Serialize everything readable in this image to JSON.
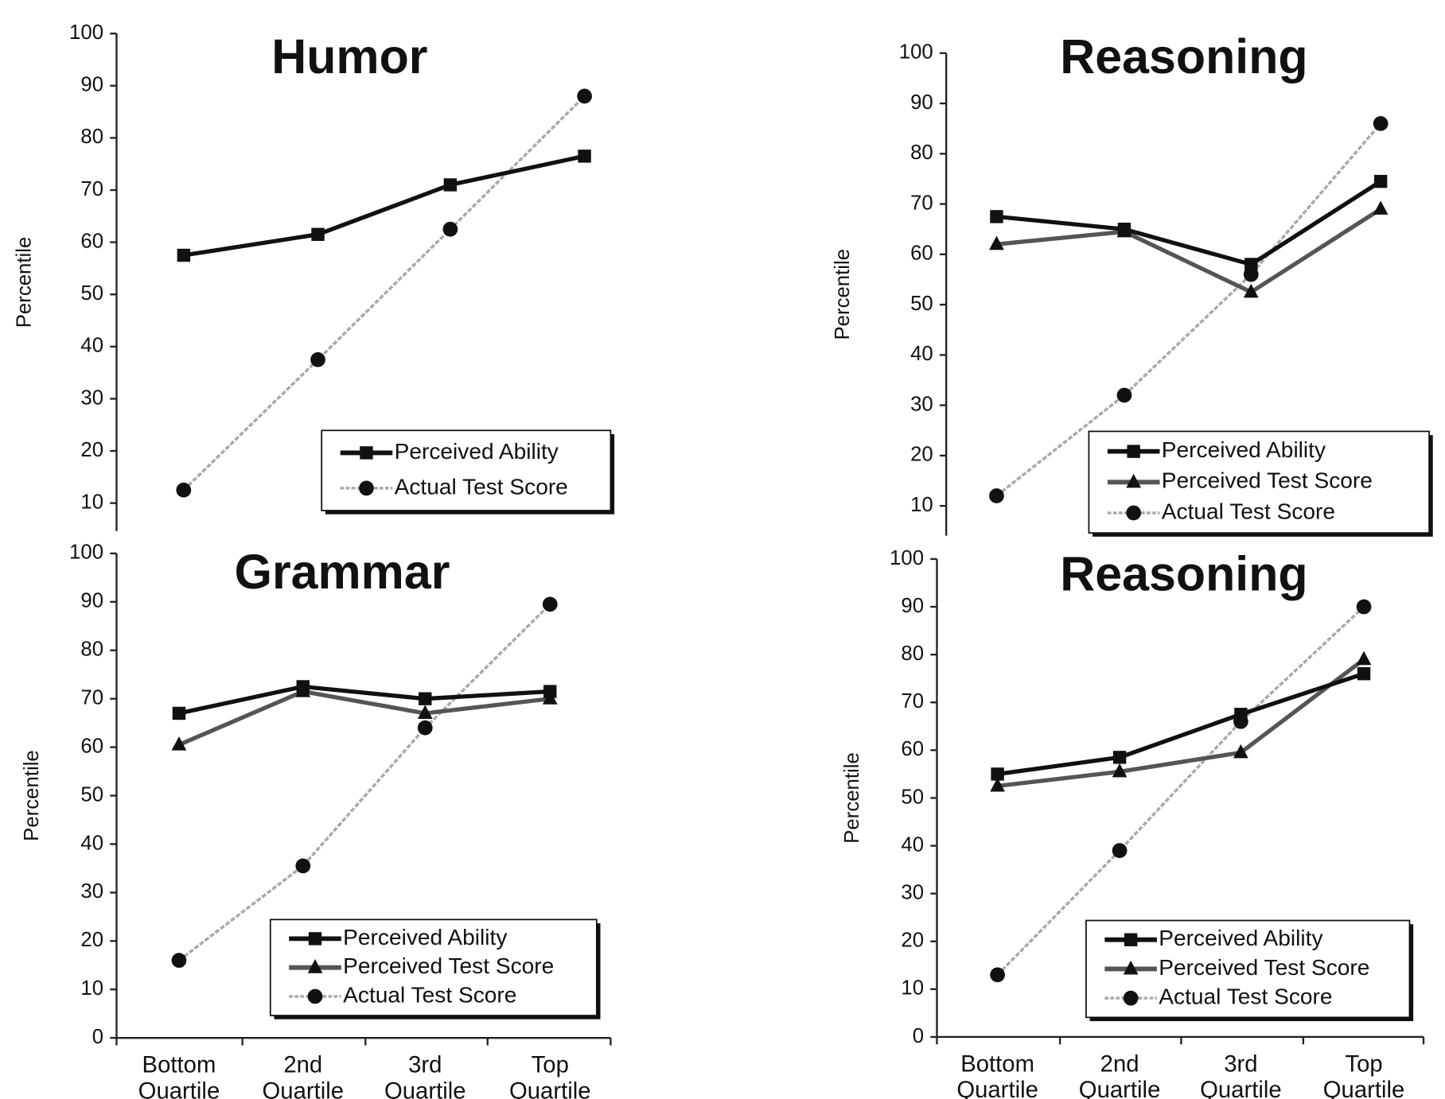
{
  "chart_data": [
    {
      "type": "line",
      "title": "Humor",
      "ylabel": "Percentile",
      "categories": [
        null,
        null,
        null,
        null
      ],
      "ylim": [
        5,
        100
      ],
      "yticks": [
        10,
        20,
        30,
        40,
        50,
        60,
        70,
        80,
        90,
        100
      ],
      "series": [
        {
          "name": "Perceived Ability",
          "color": "#111111",
          "marker": "square",
          "values": [
            57.5,
            61.5,
            71,
            76.5
          ]
        },
        {
          "name": "Actual Test Score",
          "color": "#aaaaaa",
          "marker": "circle",
          "values": [
            12.5,
            37.5,
            62.5,
            88
          ]
        }
      ]
    },
    {
      "type": "line",
      "title": "Reasoning",
      "ylabel": "Percentile",
      "categories": [
        null,
        null,
        null,
        null
      ],
      "ylim": [
        5,
        100
      ],
      "yticks": [
        10,
        20,
        30,
        40,
        50,
        60,
        70,
        80,
        90,
        100
      ],
      "series": [
        {
          "name": "Perceived Ability",
          "color": "#111111",
          "marker": "square",
          "values": [
            67.5,
            65,
            58,
            74.5
          ]
        },
        {
          "name": "Perceived Test Score",
          "color": "#555555",
          "marker": "triangle",
          "values": [
            62,
            64.5,
            52.5,
            69
          ]
        },
        {
          "name": "Actual Test Score",
          "color": "#aaaaaa",
          "marker": "circle",
          "values": [
            12,
            32,
            56,
            86
          ]
        }
      ]
    },
    {
      "type": "line",
      "title": "Grammar",
      "ylabel": "Percentile",
      "categories": [
        "Bottom Quartile",
        "2nd Quartile",
        "3rd Quartile",
        "Top Quartile"
      ],
      "ylim": [
        0,
        100
      ],
      "yticks": [
        0,
        10,
        20,
        30,
        40,
        50,
        60,
        70,
        80,
        90,
        100
      ],
      "series": [
        {
          "name": "Perceived Ability",
          "color": "#111111",
          "marker": "square",
          "values": [
            67,
            72.5,
            70,
            71.5
          ]
        },
        {
          "name": "Perceived Test Score",
          "color": "#555555",
          "marker": "triangle",
          "values": [
            60.5,
            71.5,
            67,
            70
          ]
        },
        {
          "name": "Actual Test Score",
          "color": "#aaaaaa",
          "marker": "circle",
          "values": [
            16,
            35.5,
            64,
            89.5
          ]
        }
      ]
    },
    {
      "type": "line",
      "title": "Reasoning",
      "ylabel": "Percentile",
      "categories": [
        "Bottom Quartile",
        "2nd Quartile",
        "3rd Quartile",
        "Top Quartile"
      ],
      "ylim": [
        0,
        100
      ],
      "yticks": [
        0,
        10,
        20,
        30,
        40,
        50,
        60,
        70,
        80,
        90,
        100
      ],
      "series": [
        {
          "name": "Perceived Ability",
          "color": "#111111",
          "marker": "square",
          "values": [
            55,
            58.5,
            67.5,
            76
          ]
        },
        {
          "name": "Perceived Test Score",
          "color": "#555555",
          "marker": "triangle",
          "values": [
            52.5,
            55.5,
            59.5,
            79
          ]
        },
        {
          "name": "Actual Test Score",
          "color": "#aaaaaa",
          "marker": "circle",
          "values": [
            13,
            39,
            66,
            90
          ]
        }
      ]
    }
  ]
}
